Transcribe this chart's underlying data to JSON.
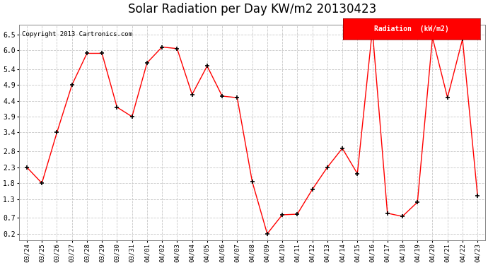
{
  "title": "Solar Radiation per Day KW/m2 20130423",
  "copyright": "Copyright 2013 Cartronics.com",
  "legend_label": "Radiation  (kW/m2)",
  "line_color": "red",
  "marker": "+",
  "marker_color": "black",
  "background_color": "#ffffff",
  "grid_color": "#c8c8c8",
  "ylim": [
    0.0,
    6.8
  ],
  "yticks": [
    0.2,
    0.7,
    1.3,
    1.8,
    2.3,
    2.8,
    3.4,
    3.9,
    4.4,
    4.9,
    5.4,
    6.0,
    6.5
  ],
  "dates": [
    "03/24",
    "03/25",
    "03/26",
    "03/27",
    "03/28",
    "03/29",
    "03/30",
    "03/31",
    "04/01",
    "04/02",
    "04/03",
    "04/04",
    "04/05",
    "04/06",
    "04/07",
    "04/08",
    "04/09",
    "04/10",
    "04/11",
    "04/12",
    "04/13",
    "04/14",
    "04/15",
    "04/16",
    "04/17",
    "04/18",
    "04/19",
    "04/20",
    "04/21",
    "04/22",
    "04/23"
  ],
  "values": [
    2.3,
    1.8,
    3.4,
    4.9,
    5.9,
    5.9,
    4.2,
    3.9,
    5.6,
    6.1,
    6.05,
    4.6,
    5.5,
    4.55,
    4.5,
    1.85,
    0.2,
    0.8,
    0.82,
    1.6,
    2.3,
    2.9,
    2.1,
    6.65,
    0.85,
    0.75,
    1.2,
    6.4,
    4.5,
    6.35,
    1.4
  ]
}
